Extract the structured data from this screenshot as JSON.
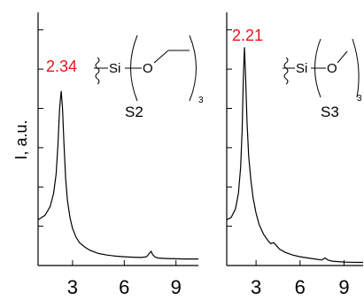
{
  "ylabel": "I, a.u.",
  "colors": {
    "curve": "#000000",
    "peak_label": "#e8141b",
    "axis": "#000000"
  },
  "chart_data": [
    {
      "type": "line",
      "name": "S2",
      "sample_label": "S2",
      "peak_label": "2.34",
      "peak_x": 2.34,
      "structure": {
        "atom_si": "Si",
        "atom_o": "O",
        "subscript": "3",
        "chain": "ethyl"
      },
      "xlim": [
        1,
        10.3
      ],
      "ylim": [
        0,
        1.16
      ],
      "xticks": [
        3,
        6,
        9
      ],
      "x": [
        1.0,
        1.4,
        1.7,
        1.9,
        2.05,
        2.15,
        2.25,
        2.34,
        2.42,
        2.5,
        2.6,
        2.7,
        2.85,
        3.0,
        3.2,
        3.4,
        3.7,
        4.0,
        4.5,
        5.0,
        5.5,
        6.0,
        6.5,
        7.0,
        7.3,
        7.45,
        7.55,
        7.65,
        7.8,
        8.0,
        8.5,
        9.0,
        9.5,
        10.0,
        10.3
      ],
      "y": [
        0.21,
        0.23,
        0.27,
        0.33,
        0.42,
        0.55,
        0.72,
        0.8,
        0.72,
        0.56,
        0.4,
        0.3,
        0.22,
        0.17,
        0.13,
        0.105,
        0.085,
        0.07,
        0.055,
        0.048,
        0.043,
        0.04,
        0.038,
        0.037,
        0.04,
        0.055,
        0.065,
        0.05,
        0.038,
        0.034,
        0.032,
        0.031,
        0.03,
        0.03,
        0.03
      ]
    },
    {
      "type": "line",
      "name": "S3",
      "sample_label": "S3",
      "peak_label": "2.21",
      "peak_x": 2.21,
      "structure": {
        "atom_si": "Si",
        "atom_o": "O",
        "subscript": "3",
        "chain": "methyl"
      },
      "xlim": [
        1,
        10.3
      ],
      "ylim": [
        0,
        1.16
      ],
      "xticks": [
        3,
        6,
        9
      ],
      "x": [
        1.0,
        1.3,
        1.6,
        1.8,
        1.95,
        2.05,
        2.13,
        2.21,
        2.28,
        2.38,
        2.5,
        2.65,
        2.8,
        3.0,
        3.2,
        3.5,
        3.8,
        4.0,
        4.2,
        4.4,
        4.6,
        5.0,
        5.5,
        6.0,
        6.5,
        7.0,
        7.5,
        7.7,
        7.9,
        8.2,
        8.6,
        9.0,
        9.5,
        10.0,
        10.3
      ],
      "y": [
        0.21,
        0.22,
        0.26,
        0.33,
        0.45,
        0.62,
        0.85,
        1.0,
        0.88,
        0.66,
        0.5,
        0.39,
        0.31,
        0.24,
        0.19,
        0.145,
        0.115,
        0.1,
        0.105,
        0.09,
        0.075,
        0.06,
        0.048,
        0.04,
        0.035,
        0.03,
        0.025,
        0.035,
        0.025,
        0.02,
        0.018,
        0.016,
        0.015,
        0.014,
        0.014
      ]
    }
  ]
}
